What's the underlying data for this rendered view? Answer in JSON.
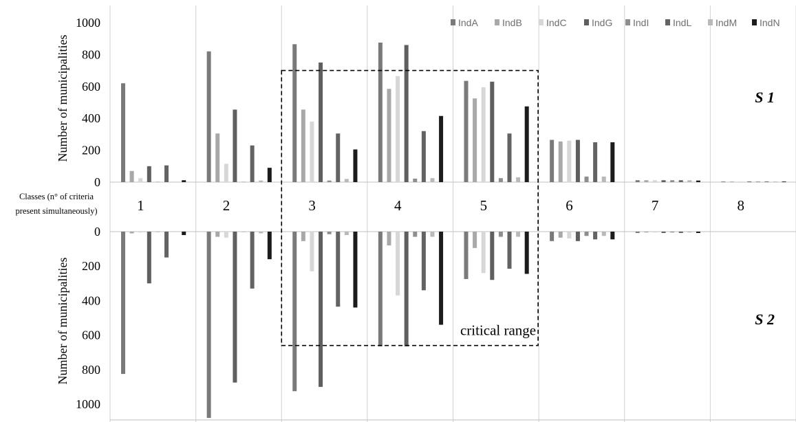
{
  "chart_data": {
    "type": "bar",
    "categories": [
      "1",
      "2",
      "3",
      "4",
      "5",
      "6",
      "7",
      "8"
    ],
    "classes_caption": [
      "Classes (n° of criteria",
      "present simultaneously)"
    ],
    "series_names": [
      "IndA",
      "IndB",
      "IndC",
      "IndG",
      "IndI",
      "IndL",
      "IndM",
      "IndN"
    ],
    "colors": {
      "IndA": "#7a7a7a",
      "IndB": "#a8a8a8",
      "IndC": "#d7d7d7",
      "IndG": "#5f5f5f",
      "IndI": "#8e8e8e",
      "IndL": "#636363",
      "IndM": "#b9b9b9",
      "IndN": "#1c1c1c"
    },
    "panels": [
      {
        "scenario_label": "S 1",
        "ylabel": "Number of municipalities",
        "ylim": [
          0,
          1000
        ],
        "yticks": [
          0,
          200,
          400,
          600,
          800,
          1000
        ],
        "direction": "up",
        "series": [
          {
            "name": "IndA",
            "values": [
              620,
              820,
              865,
              875,
              635,
              265,
              12,
              4
            ]
          },
          {
            "name": "IndB",
            "values": [
              70,
              305,
              455,
              585,
              525,
              255,
              12,
              4
            ]
          },
          {
            "name": "IndC",
            "values": [
              25,
              115,
              380,
              665,
              595,
              260,
              12,
              4
            ]
          },
          {
            "name": "IndG",
            "values": [
              100,
              455,
              750,
              860,
              630,
              265,
              12,
              4
            ]
          },
          {
            "name": "IndI",
            "values": [
              2,
              2,
              10,
              22,
              25,
              35,
              12,
              4
            ]
          },
          {
            "name": "IndL",
            "values": [
              105,
              230,
              305,
              320,
              305,
              250,
              12,
              4
            ]
          },
          {
            "name": "IndM",
            "values": [
              2,
              10,
              20,
              25,
              30,
              35,
              12,
              4
            ]
          },
          {
            "name": "IndN",
            "values": [
              12,
              90,
              205,
              415,
              475,
              250,
              10,
              4
            ]
          }
        ]
      },
      {
        "scenario_label": "S 2",
        "ylabel": "Number of municipalities",
        "ylim": [
          0,
          1000
        ],
        "yticks": [
          0,
          200,
          400,
          600,
          800,
          1000
        ],
        "direction": "down",
        "series": [
          {
            "name": "IndA",
            "values": [
              825,
              1080,
              925,
              665,
              275,
              55,
              8,
              0
            ]
          },
          {
            "name": "IndB",
            "values": [
              10,
              30,
              55,
              80,
              95,
              35,
              5,
              0
            ]
          },
          {
            "name": "IndC",
            "values": [
              5,
              35,
              230,
              370,
              240,
              40,
              5,
              0
            ]
          },
          {
            "name": "IndG",
            "values": [
              300,
              875,
              900,
              665,
              280,
              55,
              8,
              0
            ]
          },
          {
            "name": "IndI",
            "values": [
              2,
              2,
              15,
              30,
              30,
              25,
              5,
              0
            ]
          },
          {
            "name": "IndL",
            "values": [
              150,
              330,
              435,
              340,
              215,
              45,
              8,
              0
            ]
          },
          {
            "name": "IndM",
            "values": [
              2,
              10,
              20,
              30,
              30,
              25,
              5,
              0
            ]
          },
          {
            "name": "IndN",
            "values": [
              20,
              160,
              440,
              540,
              245,
              45,
              8,
              0
            ]
          }
        ]
      }
    ],
    "annotation": {
      "text": "critical range",
      "spans_classes": [
        "3",
        "5"
      ],
      "y_top": 700,
      "y_bottom": 660
    },
    "legend_position": "top-right",
    "grid": "vertical separators between classes"
  }
}
